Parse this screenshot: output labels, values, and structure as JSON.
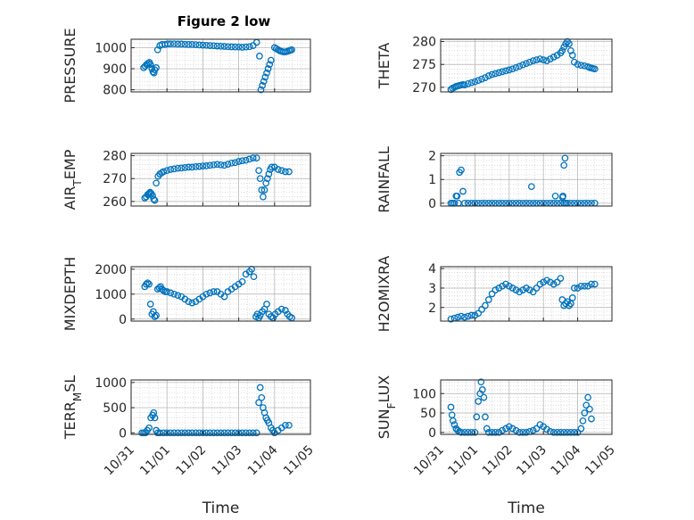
{
  "figure": {
    "title": "Figure 2 low",
    "marker_color": "#0072BD",
    "axis_color": "#262626",
    "grid_color": "#c8c8c8"
  },
  "chart_data": [
    {
      "type": "scatter",
      "ylabel": "PRESSURE",
      "xlim": [
        "10/31",
        "11/05"
      ],
      "ylim": [
        790,
        1040
      ],
      "yticks": [
        800,
        900,
        1000
      ],
      "grid": true,
      "minor_grid": true,
      "series": [
        {
          "x": [
            0.35,
            0.39,
            0.43,
            0.47,
            0.51,
            0.54,
            0.58,
            0.61,
            0.64,
            0.66,
            0.7,
            0.74,
            0.8,
            0.86,
            0.94,
            1.02,
            1.1,
            1.2,
            1.3,
            1.4,
            1.5,
            1.6,
            1.7,
            1.8,
            1.9,
            2.0,
            2.1,
            2.2,
            2.3,
            2.4,
            2.5,
            2.6,
            2.7,
            2.8,
            2.9,
            3.0,
            3.1,
            3.2,
            3.3,
            3.4,
            3.5,
            3.58,
            3.62,
            3.66,
            3.7,
            3.74,
            3.78,
            3.82,
            3.86,
            3.9,
            4.0,
            4.05,
            4.1,
            4.15,
            4.2,
            4.25,
            4.3,
            4.35,
            4.4,
            4.44,
            4.48
          ],
          "y": [
            905,
            912,
            920,
            925,
            930,
            920,
            900,
            885,
            880,
            895,
            905,
            990,
            1010,
            1015,
            1015,
            1018,
            1018,
            1018,
            1017,
            1017,
            1016,
            1015,
            1015,
            1014,
            1013,
            1012,
            1011,
            1010,
            1009,
            1008,
            1007,
            1006,
            1005,
            1004,
            1003,
            1003,
            1002,
            1003,
            1005,
            1010,
            1025,
            960,
            800,
            820,
            840,
            860,
            880,
            900,
            920,
            940,
            1000,
            995,
            990,
            985,
            982,
            980,
            980,
            982,
            985,
            988,
            990
          ]
        }
      ]
    },
    {
      "type": "scatter",
      "ylabel": "THETA",
      "xlim": [
        "10/31",
        "11/05"
      ],
      "ylim": [
        269,
        280.5
      ],
      "yticks": [
        270,
        275,
        280
      ],
      "grid": true,
      "minor_grid": true,
      "series": [
        {
          "x": [
            0.3,
            0.35,
            0.4,
            0.45,
            0.5,
            0.55,
            0.6,
            0.65,
            0.7,
            0.8,
            0.9,
            1.0,
            1.1,
            1.2,
            1.3,
            1.4,
            1.5,
            1.6,
            1.7,
            1.8,
            1.9,
            2.0,
            2.1,
            2.2,
            2.3,
            2.4,
            2.5,
            2.6,
            2.7,
            2.8,
            2.9,
            3.0,
            3.1,
            3.2,
            3.3,
            3.4,
            3.5,
            3.55,
            3.6,
            3.65,
            3.7,
            3.75,
            3.8,
            3.85,
            3.9,
            4.0,
            4.1,
            4.2,
            4.3,
            4.35,
            4.4,
            4.45,
            4.5
          ],
          "y": [
            269.5,
            269.8,
            270.0,
            270.2,
            270.3,
            270.4,
            270.5,
            270.6,
            270.5,
            270.8,
            271.0,
            271.2,
            271.5,
            271.8,
            272.1,
            272.5,
            272.8,
            273.0,
            273.2,
            273.4,
            273.6,
            273.8,
            274.0,
            274.3,
            274.6,
            274.9,
            275.2,
            275.5,
            275.8,
            276.0,
            276.2,
            276.0,
            275.8,
            276.2,
            276.6,
            277.0,
            277.5,
            278.0,
            278.8,
            279.5,
            280.0,
            279.5,
            278.0,
            277.0,
            275.5,
            275.0,
            274.8,
            274.7,
            274.5,
            274.3,
            274.2,
            274.1,
            274.0
          ]
        }
      ]
    },
    {
      "type": "scatter",
      "ylabel": "AIR_TEMP",
      "xlim": [
        "10/31",
        "11/05"
      ],
      "ylim": [
        258,
        281
      ],
      "yticks": [
        260,
        270,
        280
      ],
      "grid": true,
      "minor_grid": true,
      "series": [
        {
          "x": [
            0.38,
            0.42,
            0.46,
            0.5,
            0.53,
            0.56,
            0.6,
            0.63,
            0.66,
            0.7,
            0.75,
            0.8,
            0.85,
            0.9,
            1.0,
            1.1,
            1.2,
            1.3,
            1.4,
            1.5,
            1.6,
            1.7,
            1.8,
            1.9,
            2.0,
            2.1,
            2.2,
            2.3,
            2.4,
            2.5,
            2.6,
            2.7,
            2.8,
            2.9,
            3.0,
            3.1,
            3.2,
            3.3,
            3.4,
            3.5,
            3.56,
            3.6,
            3.64,
            3.68,
            3.72,
            3.76,
            3.8,
            3.84,
            3.88,
            3.92,
            4.0,
            4.1,
            4.2,
            4.3,
            4.4
          ],
          "y": [
            261.5,
            262.0,
            263.0,
            263.5,
            264.0,
            263.5,
            262.5,
            261.0,
            260.5,
            268.0,
            271.0,
            272.0,
            272.5,
            273.0,
            273.5,
            274.0,
            274.2,
            274.5,
            274.6,
            274.8,
            275.0,
            275.0,
            275.2,
            275.3,
            275.5,
            275.6,
            275.8,
            276.0,
            276.2,
            276.0,
            275.8,
            276.3,
            276.8,
            277.0,
            277.5,
            277.8,
            278.0,
            278.5,
            279.0,
            279.0,
            273.5,
            270.0,
            265.0,
            262.0,
            265.0,
            268.0,
            270.0,
            272.0,
            274.0,
            275.0,
            275.0,
            274.0,
            273.5,
            273.0,
            273.0
          ]
        }
      ]
    },
    {
      "type": "scatter",
      "ylabel": "RAINFALL",
      "xlim": [
        "10/31",
        "11/05"
      ],
      "ylim": [
        -0.12,
        2.1
      ],
      "yticks": [
        0,
        1,
        2
      ],
      "grid": true,
      "minor_grid": true,
      "series": [
        {
          "x": [
            0.3,
            0.35,
            0.4,
            0.45,
            0.48,
            0.52,
            0.55,
            0.6,
            0.65,
            0.7,
            0.8,
            0.9,
            1.0,
            1.1,
            1.2,
            1.3,
            1.4,
            1.5,
            1.6,
            1.7,
            1.8,
            1.9,
            2.0,
            2.1,
            2.2,
            2.3,
            2.4,
            2.5,
            2.6,
            2.65,
            2.7,
            2.8,
            2.9,
            3.0,
            3.1,
            3.2,
            3.3,
            3.35,
            3.4,
            3.5,
            3.6,
            3.65,
            3.7,
            3.8,
            3.9,
            4.0,
            4.1,
            4.2,
            4.3,
            4.4,
            4.5,
            3.56,
            3.6,
            3.63,
            3.57
          ],
          "y": [
            0,
            0,
            0,
            0.3,
            0.3,
            0,
            1.3,
            1.4,
            0.5,
            0,
            0,
            0,
            0,
            0,
            0,
            0,
            0,
            0,
            0,
            0,
            0,
            0,
            0,
            0,
            0,
            0,
            0,
            0,
            0,
            0.7,
            0,
            0,
            0,
            0,
            0,
            0,
            0,
            0.3,
            0,
            0,
            0,
            0,
            0,
            0,
            0,
            0,
            0,
            0,
            0,
            0,
            0,
            0.25,
            1.6,
            1.9,
            0.3
          ]
        }
      ]
    },
    {
      "type": "scatter",
      "ylabel": "MIXDEPTH",
      "xlim": [
        "10/31",
        "11/05"
      ],
      "ylim": [
        -80,
        2100
      ],
      "yticks": [
        0,
        1000,
        2000
      ],
      "grid": true,
      "minor_grid": true,
      "series": [
        {
          "x": [
            0.38,
            0.42,
            0.46,
            0.5,
            0.54,
            0.58,
            0.62,
            0.66,
            0.7,
            0.74,
            0.78,
            0.82,
            0.86,
            0.9,
            0.95,
            1.0,
            1.1,
            1.2,
            1.3,
            1.4,
            1.5,
            1.6,
            1.7,
            1.8,
            1.9,
            2.0,
            2.1,
            2.2,
            2.3,
            2.4,
            2.5,
            2.6,
            2.7,
            2.8,
            2.9,
            3.0,
            3.1,
            3.2,
            3.3,
            3.36,
            3.42,
            3.48,
            3.52,
            3.56,
            3.6,
            3.66,
            3.72,
            3.78,
            3.84,
            3.9,
            3.96,
            4.02,
            4.1,
            4.2,
            4.3,
            4.36,
            4.42,
            4.48
          ],
          "y": [
            1300,
            1400,
            1450,
            1400,
            600,
            200,
            300,
            100,
            150,
            1200,
            1250,
            1300,
            1200,
            1150,
            1100,
            1100,
            1050,
            1000,
            950,
            900,
            800,
            700,
            650,
            700,
            800,
            900,
            1000,
            1050,
            1100,
            1100,
            1000,
            900,
            1100,
            1200,
            1300,
            1400,
            1500,
            1800,
            1900,
            2000,
            1700,
            100,
            200,
            50,
            150,
            300,
            400,
            600,
            200,
            100,
            50,
            200,
            300,
            400,
            350,
            200,
            100,
            50
          ]
        }
      ]
    },
    {
      "type": "scatter",
      "ylabel": "H2OMIXRA",
      "xlim": [
        "10/31",
        "11/05"
      ],
      "ylim": [
        1.3,
        4.1
      ],
      "yticks": [
        2,
        3,
        4
      ],
      "grid": true,
      "minor_grid": true,
      "series": [
        {
          "x": [
            0.3,
            0.4,
            0.5,
            0.6,
            0.7,
            0.8,
            0.9,
            1.0,
            1.1,
            1.2,
            1.3,
            1.4,
            1.5,
            1.6,
            1.7,
            1.8,
            1.9,
            2.0,
            2.1,
            2.2,
            2.3,
            2.4,
            2.5,
            2.6,
            2.7,
            2.8,
            2.9,
            3.0,
            3.1,
            3.2,
            3.3,
            3.4,
            3.5,
            3.55,
            3.6,
            3.65,
            3.7,
            3.75,
            3.8,
            3.85,
            3.9,
            4.0,
            4.1,
            4.2,
            4.3,
            4.4,
            4.5
          ],
          "y": [
            1.4,
            1.45,
            1.5,
            1.55,
            1.5,
            1.55,
            1.6,
            1.6,
            1.7,
            1.9,
            2.1,
            2.4,
            2.7,
            2.9,
            3.0,
            3.1,
            3.2,
            3.1,
            3.0,
            2.9,
            2.8,
            2.9,
            3.0,
            2.9,
            2.8,
            3.0,
            3.2,
            3.3,
            3.4,
            3.3,
            3.2,
            3.3,
            3.5,
            2.4,
            2.1,
            2.2,
            2.3,
            2.1,
            2.2,
            2.5,
            3.0,
            3.0,
            3.1,
            3.1,
            3.1,
            3.2,
            3.2
          ]
        }
      ]
    },
    {
      "type": "scatter",
      "ylabel": "TERR_MSL",
      "xlim": [
        "10/31",
        "11/05"
      ],
      "ylim": [
        -30,
        1050
      ],
      "yticks": [
        0,
        500,
        1000
      ],
      "grid": true,
      "minor_grid": true,
      "series": [
        {
          "x": [
            0.3,
            0.35,
            0.4,
            0.45,
            0.5,
            0.55,
            0.6,
            0.63,
            0.66,
            0.7,
            0.74,
            0.8,
            0.9,
            1.0,
            1.1,
            1.2,
            1.3,
            1.4,
            1.5,
            1.6,
            1.7,
            1.8,
            1.9,
            2.0,
            2.1,
            2.2,
            2.3,
            2.4,
            2.5,
            2.6,
            2.7,
            2.8,
            2.9,
            3.0,
            3.1,
            3.2,
            3.3,
            3.4,
            3.5,
            3.56,
            3.6,
            3.64,
            3.68,
            3.72,
            3.76,
            3.8,
            3.84,
            3.9,
            3.95,
            4.0,
            4.1,
            4.2,
            4.3,
            4.4
          ],
          "y": [
            0,
            0,
            0,
            50,
            100,
            300,
            350,
            400,
            300,
            50,
            0,
            0,
            0,
            0,
            0,
            0,
            0,
            0,
            0,
            0,
            0,
            0,
            0,
            0,
            0,
            0,
            0,
            0,
            0,
            0,
            0,
            0,
            0,
            0,
            0,
            0,
            0,
            0,
            0,
            600,
            900,
            700,
            500,
            400,
            300,
            250,
            200,
            100,
            50,
            0,
            50,
            100,
            150,
            150
          ]
        }
      ]
    },
    {
      "type": "scatter",
      "ylabel": "SUN_FLUX",
      "xlim": [
        "10/31",
        "11/05"
      ],
      "ylim": [
        -5,
        135
      ],
      "yticks": [
        0,
        50,
        100
      ],
      "grid": true,
      "minor_grid": true,
      "series": [
        {
          "x": [
            0.3,
            0.33,
            0.36,
            0.4,
            0.45,
            0.5,
            0.55,
            0.6,
            0.7,
            0.8,
            0.9,
            1.0,
            1.05,
            1.1,
            1.15,
            1.18,
            1.22,
            1.26,
            1.3,
            1.35,
            1.4,
            1.5,
            1.6,
            1.7,
            1.8,
            1.9,
            2.0,
            2.1,
            2.2,
            2.3,
            2.4,
            2.5,
            2.6,
            2.7,
            2.8,
            2.9,
            3.0,
            3.1,
            3.2,
            3.3,
            3.4,
            3.5,
            3.6,
            3.7,
            3.8,
            3.9,
            4.0,
            4.1,
            4.15,
            4.2,
            4.25,
            4.3,
            4.35,
            4.4
          ],
          "y": [
            65,
            45,
            30,
            20,
            10,
            5,
            2,
            0,
            0,
            0,
            0,
            0,
            40,
            80,
            100,
            130,
            110,
            90,
            40,
            10,
            0,
            0,
            0,
            0,
            5,
            10,
            15,
            10,
            5,
            0,
            0,
            0,
            2,
            5,
            10,
            20,
            15,
            8,
            2,
            0,
            0,
            0,
            0,
            0,
            0,
            0,
            0,
            10,
            30,
            50,
            70,
            90,
            60,
            35
          ]
        }
      ]
    }
  ],
  "xticks": [
    "10/31",
    "11/01",
    "11/02",
    "11/03",
    "11/04",
    "11/05"
  ],
  "xlabel": "Time"
}
